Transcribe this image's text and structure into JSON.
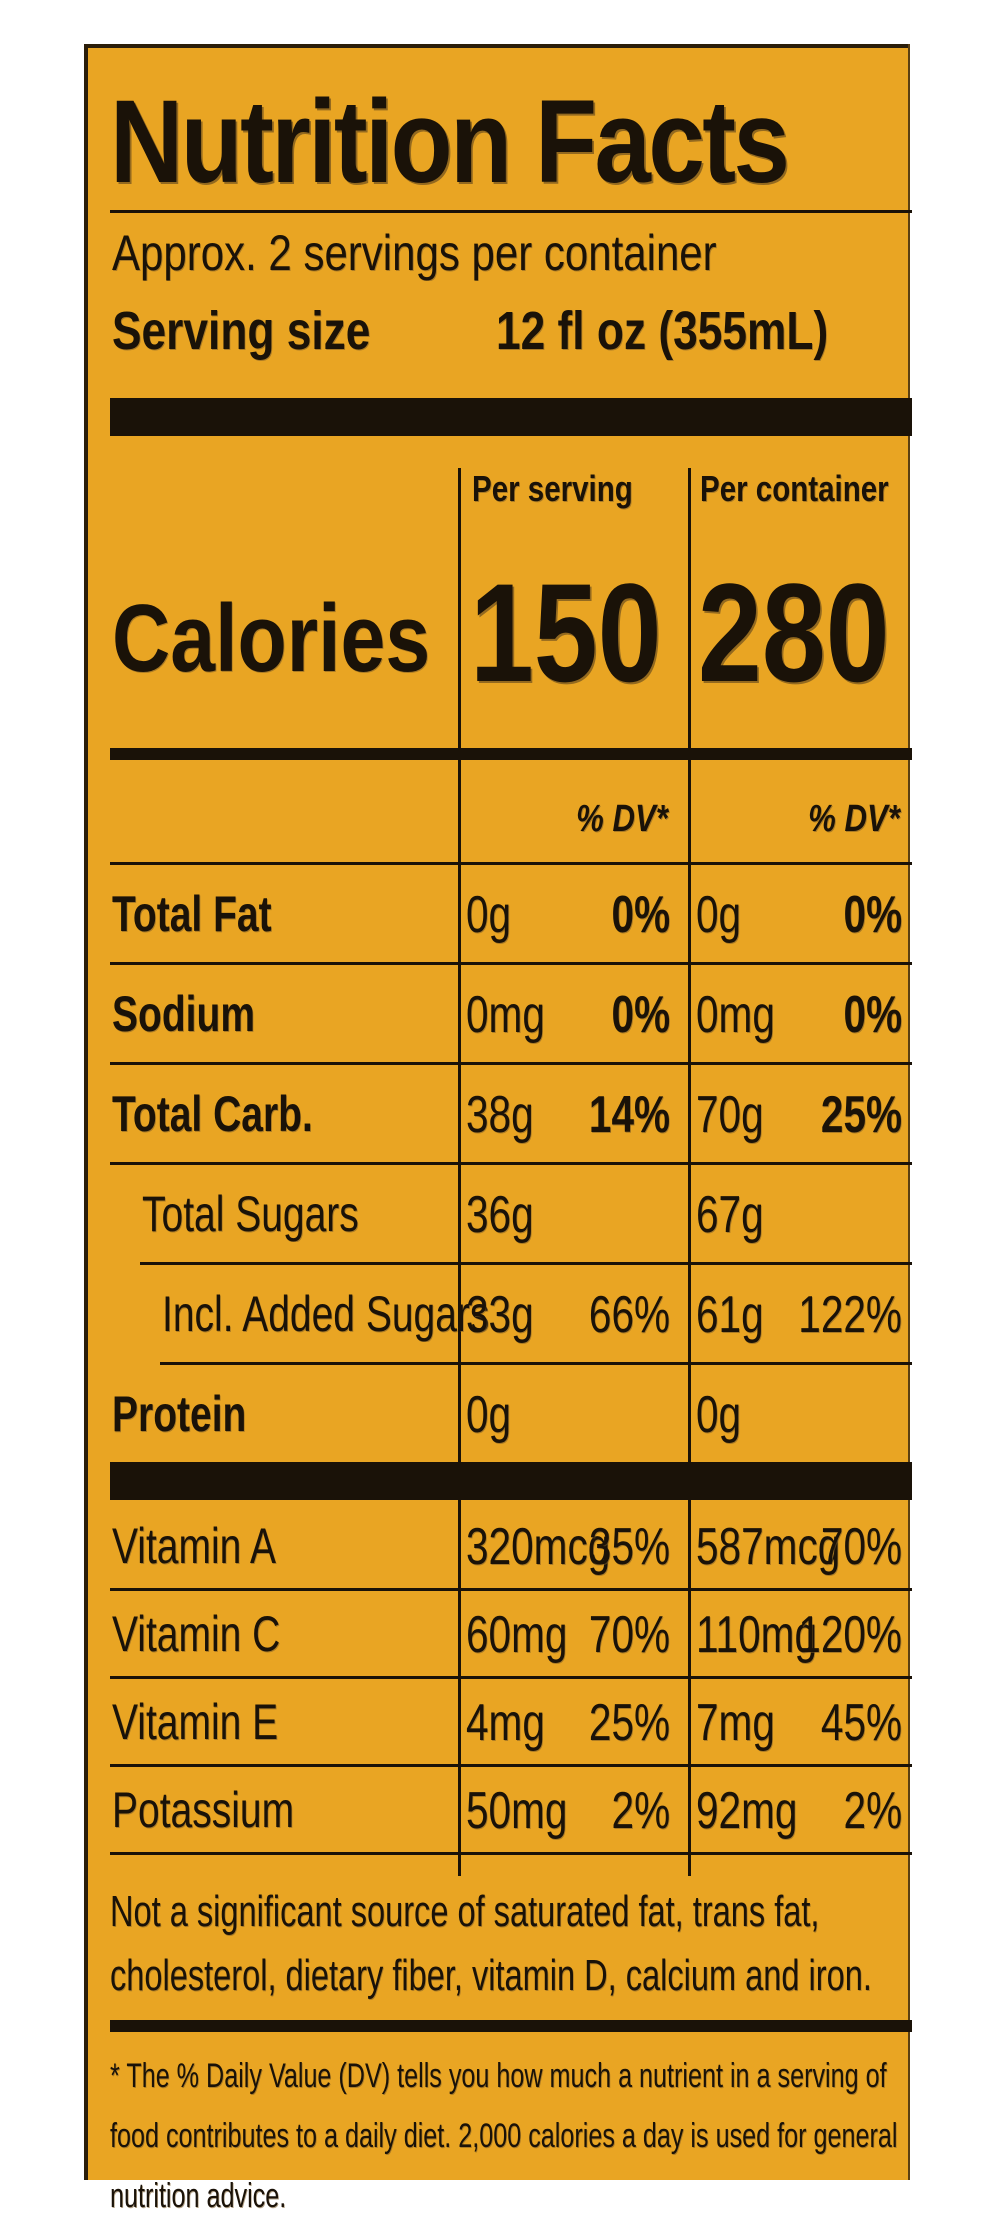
{
  "title": "Nutrition Facts",
  "servings_per_container": "Approx. 2 servings per container",
  "serving_size_label": "Serving size",
  "serving_size_value": "12 fl oz (355mL)",
  "columns": {
    "per_serving": "Per serving",
    "per_container": "Per container"
  },
  "calories": {
    "label": "Calories",
    "per_serving": "150",
    "per_container": "280"
  },
  "dv_header": "% DV*",
  "nutrients": [
    {
      "name": "Total Fat",
      "s_amt": "0g",
      "s_dv": "0%",
      "c_amt": "0g",
      "c_dv": "0%"
    },
    {
      "name": "Sodium",
      "s_amt": "0mg",
      "s_dv": "0%",
      "c_amt": "0mg",
      "c_dv": "0%"
    },
    {
      "name": "Total Carb.",
      "s_amt": "38g",
      "s_dv": "14%",
      "c_amt": "70g",
      "c_dv": "25%"
    },
    {
      "name": "Total Sugars",
      "s_amt": "36g",
      "s_dv": "",
      "c_amt": "67g",
      "c_dv": ""
    },
    {
      "name": "Incl. Added Sugars",
      "s_amt": "33g",
      "s_dv": "66%",
      "c_amt": "61g",
      "c_dv": "122%"
    },
    {
      "name": "Protein",
      "s_amt": "0g",
      "s_dv": "",
      "c_amt": "0g",
      "c_dv": ""
    }
  ],
  "vitamins": [
    {
      "name": "Vitamin A",
      "s_amt": "320mcg",
      "s_dv": "35%",
      "c_amt": "587mcg",
      "c_dv": "70%"
    },
    {
      "name": "Vitamin C",
      "s_amt": "60mg",
      "s_dv": "70%",
      "c_amt": "110mg",
      "c_dv": "120%"
    },
    {
      "name": "Vitamin E",
      "s_amt": "4mg",
      "s_dv": "25%",
      "c_amt": "7mg",
      "c_dv": "45%"
    },
    {
      "name": "Potassium",
      "s_amt": "50mg",
      "s_dv": "2%",
      "c_amt": "92mg",
      "c_dv": "2%"
    }
  ],
  "not_significant": "Not a significant source of saturated fat, trans fat, cholesterol, dietary fiber, vitamin D, calcium and iron.",
  "footnote": "* The % Daily Value (DV) tells you how much a nutrient in a serving of food contributes to a daily diet. 2,000 calories a day is used for general nutrition advice."
}
